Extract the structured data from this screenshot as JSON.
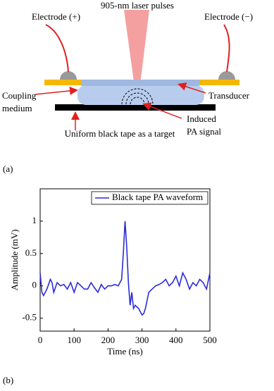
{
  "diagram": {
    "laser": "905-nm laser pulses",
    "electrode_plus": "Electrode (+)",
    "electrode_minus": "Electrode (−)",
    "coupling_medium": [
      "Coupling",
      "medium"
    ],
    "transducer": "Transducer",
    "induced_signal": [
      "Induced",
      "PA signal"
    ],
    "target": "Uniform black tape as a target"
  },
  "panel_labels": [
    "(a)",
    "(b)"
  ],
  "chart_data": {
    "type": "line",
    "xlabel": "Time (ns)",
    "ylabel": "Amplitude (mV)",
    "x": [
      0,
      5,
      10,
      20,
      30,
      35,
      40,
      50,
      60,
      70,
      80,
      90,
      100,
      110,
      120,
      130,
      140,
      150,
      160,
      170,
      180,
      190,
      200,
      210,
      220,
      230,
      240,
      245,
      250,
      255,
      260,
      265,
      270,
      275,
      280,
      290,
      300,
      305,
      310,
      320,
      330,
      340,
      350,
      360,
      370,
      380,
      390,
      400,
      410,
      420,
      430,
      440,
      450,
      460,
      470,
      480,
      490,
      500
    ],
    "series": [
      {
        "name": "Black tape PA waveform",
        "color": "#2b2bd9",
        "values": [
          0.2,
          -0.1,
          -0.15,
          -0.05,
          0.1,
          0.05,
          -0.1,
          0.05,
          0.0,
          0.02,
          -0.05,
          0.05,
          -0.1,
          0.05,
          0.0,
          -0.05,
          -0.05,
          0.05,
          -0.03,
          -0.1,
          0.02,
          -0.05,
          0.0,
          0.0,
          0.02,
          0.0,
          0.1,
          0.5,
          1.0,
          0.6,
          0.05,
          -0.3,
          -0.1,
          -0.35,
          -0.3,
          -0.35,
          -0.45,
          -0.43,
          -0.35,
          -0.1,
          -0.05,
          0.0,
          0.02,
          0.05,
          0.1,
          0.0,
          0.05,
          0.15,
          0.0,
          0.2,
          0.1,
          -0.05,
          0.05,
          0.0,
          0.1,
          0.05,
          -0.05,
          0.2
        ]
      }
    ],
    "xlim": [
      0,
      500
    ],
    "xticks": [
      0,
      100,
      200,
      300,
      400,
      500
    ],
    "ylim": [
      -0.7,
      1.5
    ],
    "yticks": [
      -0.5,
      0,
      0.5,
      1
    ],
    "legend": "upper right"
  }
}
